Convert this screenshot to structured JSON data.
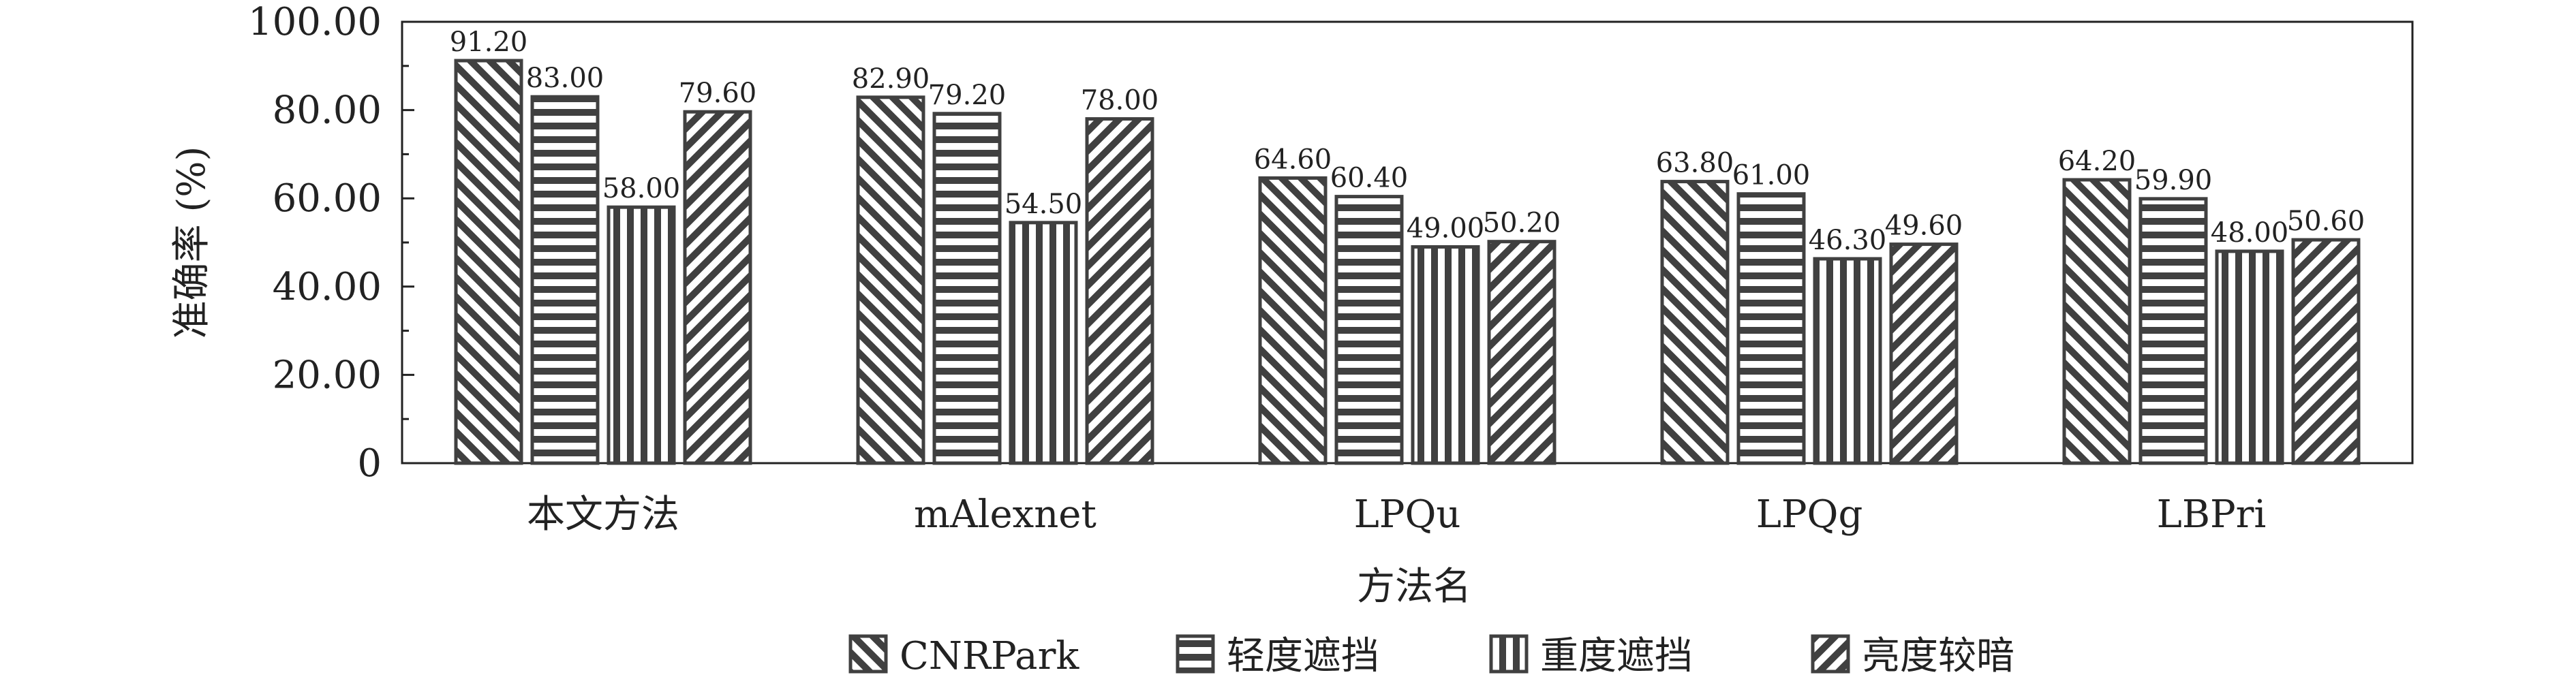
{
  "chart_data": {
    "type": "bar",
    "categories": [
      "本文方法",
      "mAlexnet",
      "LPQu",
      "LPQg",
      "LBPri"
    ],
    "series": [
      {
        "name": "CNRPark",
        "values": [
          91.2,
          82.9,
          64.6,
          63.8,
          64.2
        ],
        "labels": [
          "91.20",
          "82.90",
          "64.60",
          "63.80",
          "64.20"
        ]
      },
      {
        "name": "轻度遮挡",
        "values": [
          83.0,
          79.2,
          60.4,
          61.0,
          59.9
        ],
        "labels": [
          "83.00",
          "79.20",
          "60.40",
          "61.00",
          "59.90"
        ]
      },
      {
        "name": "重度遮挡",
        "values": [
          58.0,
          54.5,
          49.0,
          46.3,
          48.0
        ],
        "labels": [
          "58.00",
          "54.50",
          "49.00",
          "46.30",
          "48.00"
        ]
      },
      {
        "name": "亮度较暗",
        "values": [
          79.6,
          78.0,
          50.2,
          49.6,
          50.6
        ],
        "labels": [
          "79.60",
          "78.00",
          "50.20",
          "49.60",
          "50.60"
        ]
      }
    ],
    "xlabel": "方法名",
    "ylabel": "准确率 (%)",
    "ylim": [
      0,
      100
    ],
    "yticks": [
      0,
      20,
      40,
      60,
      80,
      100
    ],
    "ytick_labels": [
      "0",
      "20.00",
      "40.00",
      "60.00",
      "80.00",
      "100.00"
    ],
    "legend_position": "bottom",
    "grid": false,
    "bar_color": "#404040",
    "patterns": [
      "diagonal-back",
      "horizontal",
      "vertical",
      "diagonal-forward"
    ]
  }
}
